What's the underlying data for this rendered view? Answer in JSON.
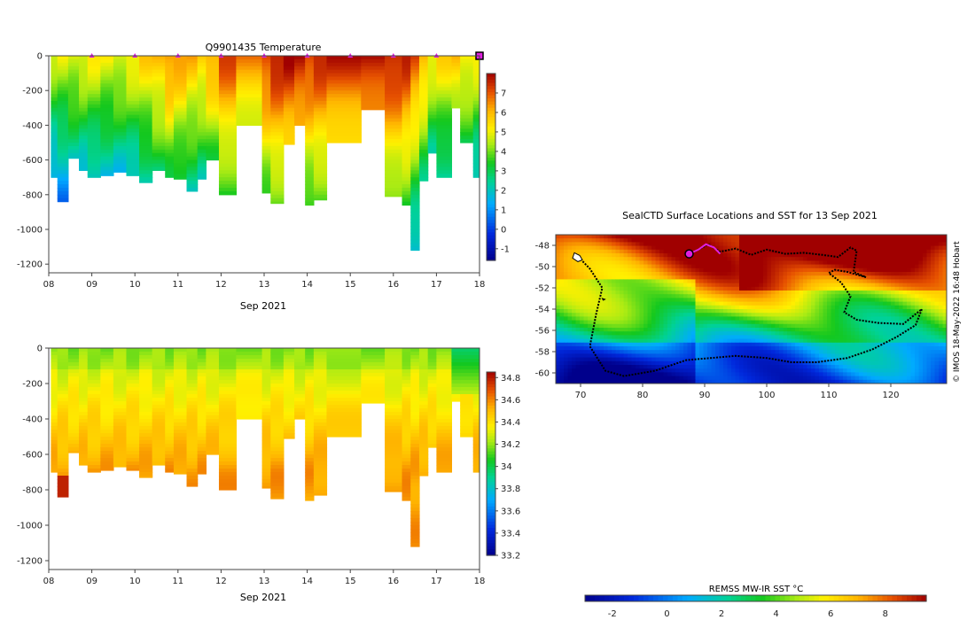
{
  "chart_data": [
    {
      "type": "heatmap",
      "title": "Q9901435  Temperature",
      "variable": "temperature",
      "xlabel": "Sep 2021",
      "x_ticks": [
        "08",
        "09",
        "10",
        "11",
        "12",
        "13",
        "14",
        "15",
        "16",
        "17",
        "18"
      ],
      "xlim": [
        8,
        18
      ],
      "y_ticks": [
        0,
        -200,
        -400,
        -600,
        -800,
        -1000,
        -1200
      ],
      "ylim": [
        -1250,
        0
      ],
      "colorbar": {
        "min": -1.6,
        "max": 8,
        "ticks": [
          7,
          6,
          5,
          4,
          3,
          2,
          1,
          0,
          -1
        ]
      },
      "profile_markers": [
        9,
        10,
        11,
        12,
        13,
        14,
        15,
        16,
        17
      ],
      "current_marker": 18,
      "profiles": [
        {
          "t": 8.05,
          "w": 0.15,
          "bot": -700,
          "surf": 4.6
        },
        {
          "t": 8.2,
          "w": 0.25,
          "bot": -840,
          "surf": 4.8
        },
        {
          "t": 8.45,
          "w": 0.25,
          "bot": -590,
          "surf": 4.9
        },
        {
          "t": 8.7,
          "w": 0.2,
          "bot": -660,
          "surf": 5.0
        },
        {
          "t": 8.9,
          "w": 0.3,
          "bot": -700,
          "surf": 5.1
        },
        {
          "t": 9.2,
          "w": 0.3,
          "bot": -690,
          "surf": 5.0
        },
        {
          "t": 9.5,
          "w": 0.3,
          "bot": -670,
          "surf": 5.0
        },
        {
          "t": 9.8,
          "w": 0.3,
          "bot": -690,
          "surf": 5.2
        },
        {
          "t": 10.1,
          "w": 0.3,
          "bot": -730,
          "surf": 5.6
        },
        {
          "t": 10.4,
          "w": 0.3,
          "bot": -660,
          "surf": 6.0
        },
        {
          "t": 10.7,
          "w": 0.2,
          "bot": -700,
          "surf": 6.6
        },
        {
          "t": 10.9,
          "w": 0.3,
          "bot": -710,
          "surf": 6.3
        },
        {
          "t": 11.2,
          "w": 0.25,
          "bot": -780,
          "surf": 6.0
        },
        {
          "t": 11.45,
          "w": 0.2,
          "bot": -710,
          "surf": 5.8
        },
        {
          "t": 11.65,
          "w": 0.3,
          "bot": -600,
          "surf": 6.3
        },
        {
          "t": 11.95,
          "w": 0.4,
          "bot": -800,
          "surf": 7.2
        },
        {
          "t": 12.35,
          "w": 0.6,
          "bot": -400,
          "surf": 6.5
        },
        {
          "t": 12.95,
          "w": 0.2,
          "bot": -790,
          "surf": 7.4
        },
        {
          "t": 13.15,
          "w": 0.3,
          "bot": -850,
          "surf": 7.8
        },
        {
          "t": 13.45,
          "w": 0.25,
          "bot": -510,
          "surf": 7.9
        },
        {
          "t": 13.7,
          "w": 0.25,
          "bot": -400,
          "surf": 7.8
        },
        {
          "t": 13.95,
          "w": 0.2,
          "bot": -860,
          "surf": 7.5
        },
        {
          "t": 14.15,
          "w": 0.3,
          "bot": -830,
          "surf": 7.6
        },
        {
          "t": 14.45,
          "w": 0.8,
          "bot": -500,
          "surf": 7.6
        },
        {
          "t": 15.25,
          "w": 0.55,
          "bot": -310,
          "surf": 7.9
        },
        {
          "t": 15.8,
          "w": 0.4,
          "bot": -810,
          "surf": 7.8
        },
        {
          "t": 16.2,
          "w": 0.2,
          "bot": -860,
          "surf": 7.6
        },
        {
          "t": 16.4,
          "w": 0.2,
          "bot": -1120,
          "surf": 7.0
        },
        {
          "t": 16.6,
          "w": 0.2,
          "bot": -720,
          "surf": 6.2
        },
        {
          "t": 16.8,
          "w": 0.2,
          "bot": -560,
          "surf": 5.2
        },
        {
          "t": 17.0,
          "w": 0.35,
          "bot": -700,
          "surf": 5.5
        },
        {
          "t": 17.35,
          "w": 0.2,
          "bot": -300,
          "surf": 5.9
        },
        {
          "t": 17.55,
          "w": 0.3,
          "bot": -500,
          "surf": 5.4
        },
        {
          "t": 17.85,
          "w": 0.25,
          "bot": -700,
          "surf": 5.2
        }
      ]
    },
    {
      "type": "heatmap",
      "title": "",
      "variable": "salinity",
      "xlabel": "Sep 2021",
      "x_ticks": [
        "08",
        "09",
        "10",
        "11",
        "12",
        "13",
        "14",
        "15",
        "16",
        "17",
        "18"
      ],
      "xlim": [
        8,
        18
      ],
      "y_ticks": [
        0,
        -200,
        -400,
        -600,
        -800,
        -1000,
        -1200
      ],
      "ylim": [
        -1250,
        0
      ],
      "colorbar": {
        "min": 33.2,
        "max": 34.85,
        "ticks": [
          34.8,
          34.6,
          34.4,
          34.2,
          34,
          33.8,
          33.6,
          33.4,
          33.2
        ]
      }
    },
    {
      "type": "heatmap",
      "title": "SealCTD Surface Locations and SST for 13 Sep 2021",
      "xlabel": "",
      "ylabel": "",
      "x_ticks": [
        "70",
        "80",
        "90",
        "100",
        "110",
        "120"
      ],
      "xlim": [
        66,
        129
      ],
      "y_ticks": [
        "-48",
        "-50",
        "-52",
        "-54",
        "-56",
        "-58",
        "-60"
      ],
      "ylim": [
        -61,
        -47
      ],
      "colorbar": {
        "label": "REMSS MW-IR SST °C",
        "min": -3,
        "max": 9.5,
        "ticks": [
          "-2",
          "0",
          "2",
          "4",
          "6",
          "8"
        ]
      },
      "credit": "© IMOS 18-May-2022 16:48 Hobart",
      "current_position": {
        "lon": 87.5,
        "lat": -48.8
      }
    }
  ]
}
